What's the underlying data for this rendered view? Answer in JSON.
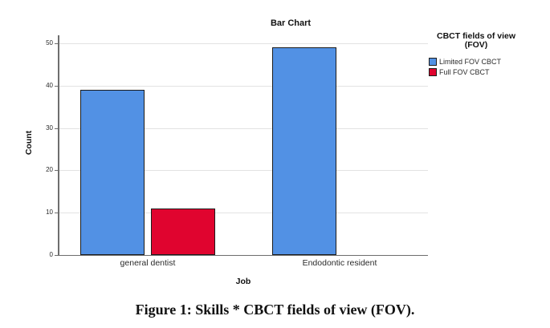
{
  "figure": {
    "caption": "Figure 1: Skills * CBCT fields of view (FOV)."
  },
  "chart_data": {
    "type": "bar",
    "title": "Bar Chart",
    "xlabel": "Job",
    "ylabel": "Count",
    "categories": [
      "general dentist",
      "Endodontic resident"
    ],
    "series": [
      {
        "name": "Limited FOV CBCT",
        "color": "#5291E4",
        "values": [
          39,
          49
        ]
      },
      {
        "name": "Full FOV CBCT",
        "color": "#E0042F",
        "values": [
          11,
          0
        ]
      }
    ],
    "ylim": [
      0,
      50
    ],
    "ytick_step": 10,
    "grid": true,
    "legend_title": "CBCT fields of view (FOV)",
    "legend_position": "right",
    "colors": {
      "axis": "#6e6e6e",
      "gridline": "#e2e2e2",
      "bar_border": "#1c1c1c"
    }
  }
}
